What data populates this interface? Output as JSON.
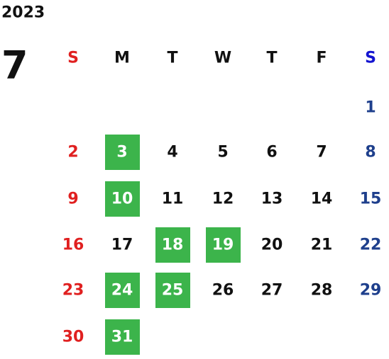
{
  "year": "2023",
  "month": "7",
  "weekdays": [
    "S",
    "M",
    "T",
    "W",
    "T",
    "F",
    "S"
  ],
  "weeks": [
    [
      null,
      null,
      null,
      null,
      null,
      null,
      1
    ],
    [
      2,
      3,
      4,
      5,
      6,
      7,
      8
    ],
    [
      9,
      10,
      11,
      12,
      13,
      14,
      15
    ],
    [
      16,
      17,
      18,
      19,
      20,
      21,
      22
    ],
    [
      23,
      24,
      25,
      26,
      27,
      28,
      29
    ],
    [
      30,
      31,
      null,
      null,
      null,
      null,
      null
    ]
  ],
  "highlighted": [
    3,
    10,
    18,
    19,
    24,
    25,
    31
  ],
  "colors": {
    "sunday": "#e02020",
    "saturday_header": "#1414d0",
    "saturday": "#1e3f8c",
    "weekday": "#111111",
    "highlight": "#3cb44b",
    "highlight_text": "#ffffff"
  }
}
